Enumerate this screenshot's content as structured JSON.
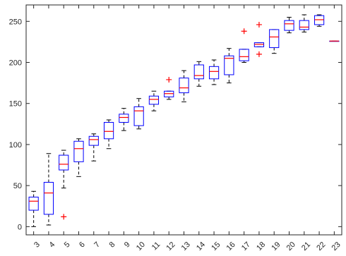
{
  "chart_data": {
    "type": "box",
    "title": "",
    "xlabel": "",
    "ylabel": "",
    "ylim": [
      -10,
      270
    ],
    "y_ticks": [
      0,
      50,
      100,
      150,
      200,
      250
    ],
    "y_tick_labels": [
      "0",
      "50",
      "100",
      "150",
      "200",
      "250"
    ],
    "grid": false,
    "colors": {
      "box": "#0000ff",
      "median": "#ff0000",
      "whisker": "#000000",
      "outlier": "#ff0000",
      "axis": "#262626"
    },
    "categories": [
      "3",
      "4",
      "5",
      "6",
      "7",
      "8",
      "9",
      "10",
      "11",
      "12",
      "13",
      "14",
      "15",
      "16",
      "17",
      "18",
      "19",
      "20",
      "21",
      "22",
      "23"
    ],
    "boxes": [
      {
        "category": "3",
        "whisker_low": 0,
        "q1": 20,
        "median": 31,
        "q3": 36,
        "whisker_high": 43,
        "outliers": []
      },
      {
        "category": "4",
        "whisker_low": 2,
        "q1": 15,
        "median": 41,
        "q3": 54,
        "whisker_high": 89,
        "outliers": []
      },
      {
        "category": "5",
        "whisker_low": 47,
        "q1": 69,
        "median": 76,
        "q3": 87,
        "whisker_high": 93,
        "outliers": [
          12
        ]
      },
      {
        "category": "6",
        "whisker_low": 61,
        "q1": 79,
        "median": 95,
        "q3": 104,
        "whisker_high": 107,
        "outliers": []
      },
      {
        "category": "7",
        "whisker_low": 80,
        "q1": 99,
        "median": 106,
        "q3": 110,
        "whisker_high": 113,
        "outliers": []
      },
      {
        "category": "8",
        "whisker_low": 95,
        "q1": 107,
        "median": 116,
        "q3": 127,
        "whisker_high": 130,
        "outliers": []
      },
      {
        "category": "9",
        "whisker_low": 117,
        "q1": 127,
        "median": 133,
        "q3": 137,
        "whisker_high": 144,
        "outliers": []
      },
      {
        "category": "10",
        "whisker_low": 119,
        "q1": 123,
        "median": 141,
        "q3": 146,
        "whisker_high": 156,
        "outliers": []
      },
      {
        "category": "11",
        "whisker_low": 141,
        "q1": 149,
        "median": 155,
        "q3": 159,
        "whisker_high": 165,
        "outliers": []
      },
      {
        "category": "12",
        "whisker_low": 155,
        "q1": 158,
        "median": 162,
        "q3": 165,
        "whisker_high": 165,
        "outliers": [
          179
        ]
      },
      {
        "category": "13",
        "whisker_low": 152,
        "q1": 163,
        "median": 169,
        "q3": 181,
        "whisker_high": 190,
        "outliers": []
      },
      {
        "category": "14",
        "whisker_low": 171,
        "q1": 180,
        "median": 184,
        "q3": 197,
        "whisker_high": 201,
        "outliers": []
      },
      {
        "category": "15",
        "whisker_low": 173,
        "q1": 180,
        "median": 189,
        "q3": 195,
        "whisker_high": 203,
        "outliers": []
      },
      {
        "category": "16",
        "whisker_low": 175,
        "q1": 185,
        "median": 205,
        "q3": 208,
        "whisker_high": 217,
        "outliers": []
      },
      {
        "category": "17",
        "whisker_low": 200,
        "q1": 202,
        "median": 207,
        "q3": 216,
        "whisker_high": 216,
        "outliers": [
          238
        ]
      },
      {
        "category": "18",
        "whisker_low": 219,
        "q1": 219,
        "median": 222,
        "q3": 224,
        "whisker_high": 224,
        "outliers": [
          210,
          246
        ]
      },
      {
        "category": "19",
        "whisker_low": 211,
        "q1": 218,
        "median": 231,
        "q3": 240,
        "whisker_high": 240,
        "outliers": []
      },
      {
        "category": "20",
        "whisker_low": 236,
        "q1": 239,
        "median": 247,
        "q3": 251,
        "whisker_high": 255,
        "outliers": []
      },
      {
        "category": "21",
        "whisker_low": 237,
        "q1": 240,
        "median": 243,
        "q3": 251,
        "whisker_high": 258,
        "outliers": []
      },
      {
        "category": "22",
        "whisker_low": 244,
        "q1": 246,
        "median": 252,
        "q3": 257,
        "whisker_high": 258,
        "outliers": []
      },
      {
        "category": "23",
        "whisker_low": 226,
        "q1": 226,
        "median": 226,
        "q3": 226,
        "whisker_high": 226,
        "outliers": []
      }
    ]
  }
}
